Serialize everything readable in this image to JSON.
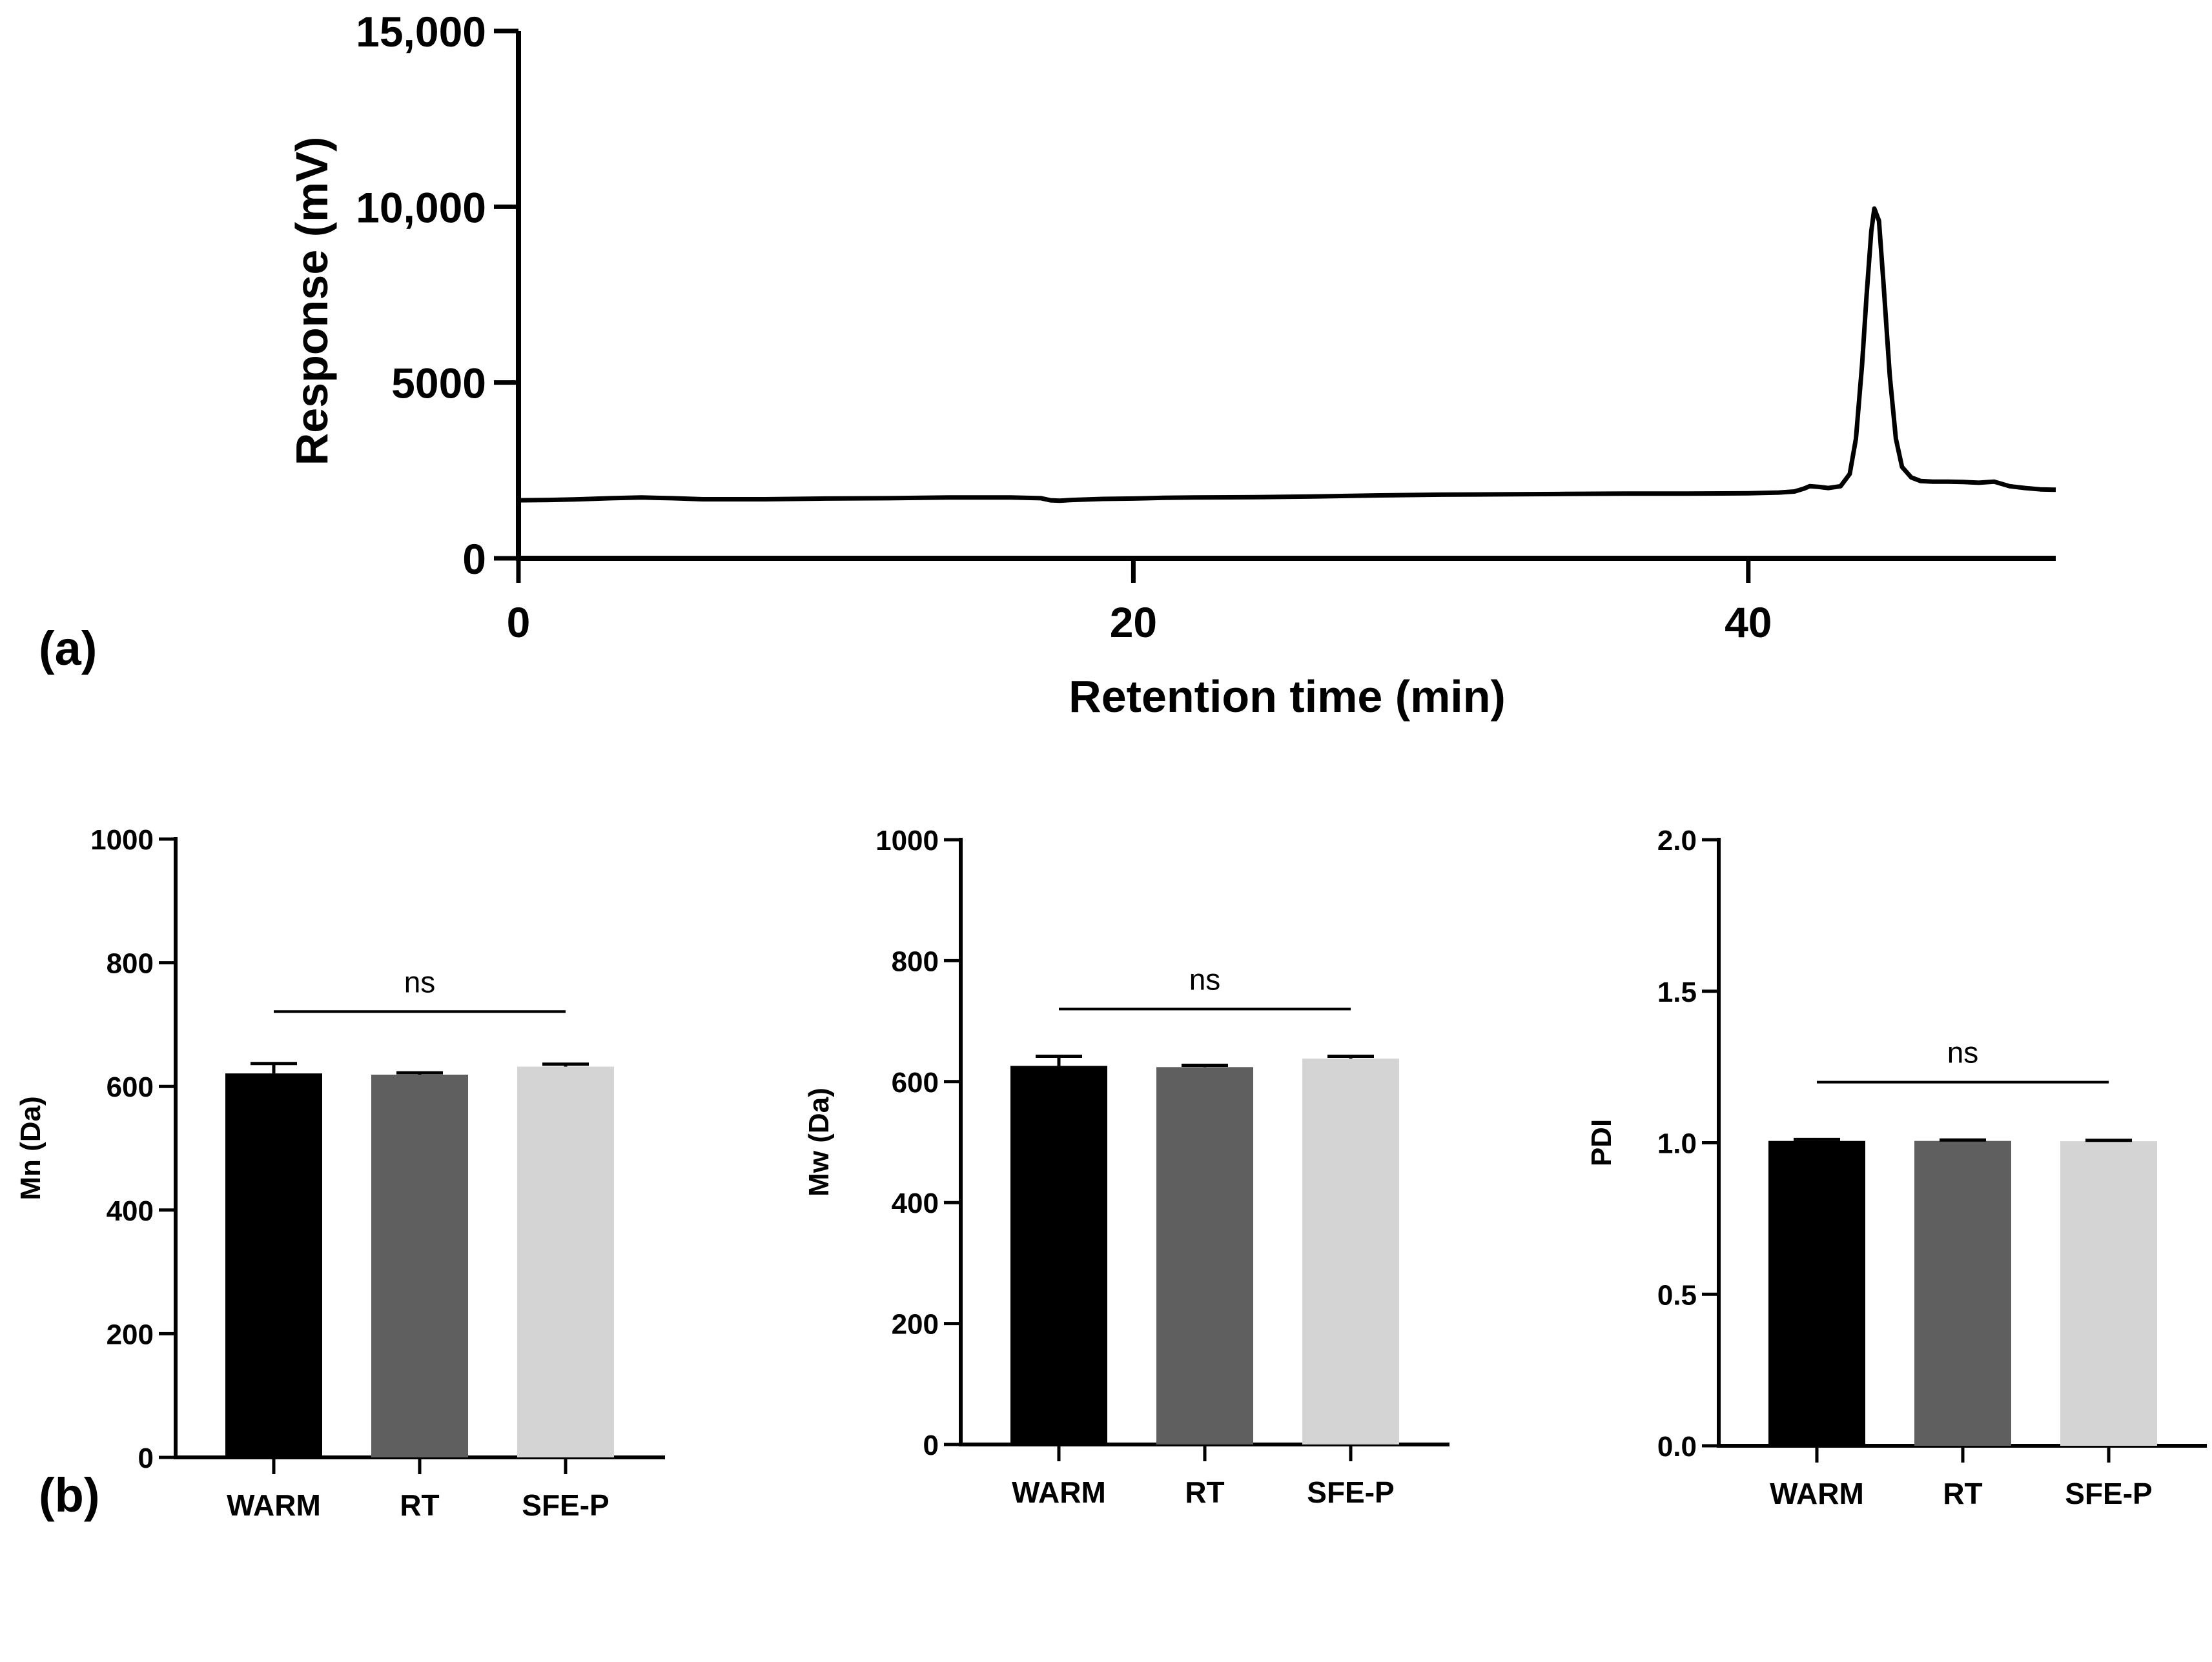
{
  "panels": {
    "a_label": "(a)",
    "b_label": "(b)"
  },
  "chart_data": [
    {
      "id": "chromatogram",
      "type": "line",
      "title": "",
      "xlabel": "Retention time (min)",
      "ylabel": "Response (mV)",
      "xlim": [
        0,
        50
      ],
      "ylim": [
        0,
        15000
      ],
      "xticks": [
        0,
        20,
        40
      ],
      "xtick_labels": [
        "0",
        "20",
        "40"
      ],
      "yticks": [
        0,
        5000,
        10000,
        15000
      ],
      "ytick_labels": [
        "0",
        "5000",
        "10,000",
        "15,000"
      ],
      "grid": false,
      "colors": {
        "line": "#000000"
      },
      "series": [
        {
          "name": "chromatogram",
          "x": [
            0,
            1,
            2,
            3,
            4,
            5,
            6,
            7,
            8,
            10,
            12,
            14,
            16,
            17,
            17.3,
            17.6,
            18,
            19,
            20,
            21,
            22,
            24,
            26,
            28,
            30,
            32,
            34,
            36,
            38,
            40,
            41,
            41.5,
            41.8,
            42,
            42.3,
            42.6,
            43.0,
            43.3,
            43.5,
            43.7,
            43.85,
            44.0,
            44.1,
            44.25,
            44.4,
            44.6,
            44.8,
            45.0,
            45.3,
            45.6,
            46,
            46.5,
            47,
            47.5,
            48,
            48.5,
            49,
            49.5,
            50
          ],
          "y": [
            1650,
            1660,
            1680,
            1710,
            1730,
            1710,
            1680,
            1680,
            1680,
            1700,
            1710,
            1730,
            1730,
            1710,
            1650,
            1640,
            1660,
            1690,
            1700,
            1720,
            1730,
            1740,
            1760,
            1790,
            1810,
            1820,
            1830,
            1840,
            1840,
            1850,
            1870,
            1900,
            1980,
            2050,
            2030,
            2000,
            2050,
            2400,
            3400,
            5500,
            7500,
            9300,
            9950,
            9600,
            7800,
            5200,
            3400,
            2600,
            2300,
            2200,
            2180,
            2180,
            2170,
            2150,
            2180,
            2050,
            2000,
            1960,
            1950
          ]
        }
      ]
    },
    {
      "id": "mn-bar",
      "type": "bar",
      "title": "",
      "xlabel": "",
      "ylabel": "Mn (Da)",
      "ylim": [
        0,
        1000
      ],
      "yticks": [
        0,
        200,
        400,
        600,
        800,
        1000
      ],
      "ytick_labels": [
        "0",
        "200",
        "400",
        "600",
        "800",
        "1000"
      ],
      "categories": [
        "WARM",
        "RT",
        "SFE-P"
      ],
      "values": [
        621,
        619,
        632
      ],
      "errors": [
        16,
        3,
        4
      ],
      "colors": [
        "#000000",
        "#5f5f5f",
        "#d4d4d4"
      ],
      "significance": {
        "text": "ns",
        "span": [
          "WARM",
          "SFE-P"
        ],
        "level": 721
      }
    },
    {
      "id": "mw-bar",
      "type": "bar",
      "title": "",
      "xlabel": "",
      "ylabel": "Mw (Da)",
      "ylim": [
        0,
        1000
      ],
      "yticks": [
        0,
        200,
        400,
        600,
        800,
        1000
      ],
      "ytick_labels": [
        "0",
        "200",
        "400",
        "600",
        "800",
        "1000"
      ],
      "categories": [
        "WARM",
        "RT",
        "SFE-P"
      ],
      "values": [
        626,
        624,
        638
      ],
      "errors": [
        16,
        3,
        4
      ],
      "colors": [
        "#000000",
        "#5f5f5f",
        "#d4d4d4"
      ],
      "significance": {
        "text": "ns",
        "span": [
          "WARM",
          "SFE-P"
        ],
        "level": 720
      }
    },
    {
      "id": "pdi-bar",
      "type": "bar",
      "title": "",
      "xlabel": "",
      "ylabel": "PDI",
      "ylim": [
        0,
        2.0
      ],
      "yticks": [
        0,
        0.5,
        1.0,
        1.5,
        2.0
      ],
      "ytick_labels": [
        "0.0",
        "0.5",
        "1.0",
        "1.5",
        "2.0"
      ],
      "categories": [
        "WARM",
        "RT",
        "SFE-P"
      ],
      "values": [
        1.006,
        1.006,
        1.005
      ],
      "errors": [
        0.005,
        0.003,
        0.003
      ],
      "colors": [
        "#000000",
        "#5f5f5f",
        "#d4d4d4"
      ],
      "significance": {
        "text": "ns",
        "span": [
          "WARM",
          "SFE-P"
        ],
        "level": 1.2
      }
    }
  ]
}
